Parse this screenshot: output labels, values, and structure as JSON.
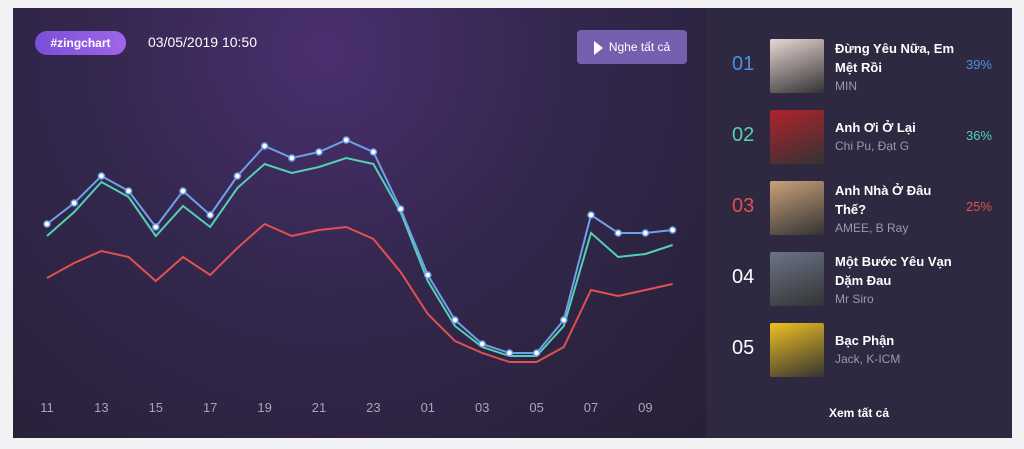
{
  "header": {
    "tag": "#zingchart",
    "timestamp": "03/05/2019 10:50",
    "play_button": "Nghe tất cả"
  },
  "chart_data": {
    "type": "line",
    "categories": [
      "11",
      null,
      "13",
      null,
      "15",
      null,
      "17",
      null,
      "19",
      null,
      "21",
      null,
      "23",
      null,
      "01",
      null,
      "03",
      null,
      "05",
      null,
      "07",
      null,
      "09",
      null
    ],
    "series": [
      {
        "color": "#6fa0ea",
        "markers": true,
        "values": [
          52,
          59,
          68,
          63,
          51,
          63,
          55,
          68,
          78,
          74,
          76,
          80,
          76,
          57,
          35,
          20,
          12,
          9,
          9,
          20,
          55,
          49,
          49,
          50
        ]
      },
      {
        "color": "#52d2b2",
        "markers": false,
        "values": [
          48,
          56,
          66,
          61,
          48,
          58,
          51,
          64,
          72,
          69,
          71,
          74,
          72,
          56,
          33,
          18,
          11,
          8,
          8,
          18,
          49,
          41,
          42,
          45
        ]
      },
      {
        "color": "#e0514f",
        "markers": false,
        "values": [
          34,
          39,
          43,
          41,
          33,
          41,
          35,
          44,
          52,
          48,
          50,
          51,
          47,
          36,
          22,
          13,
          9,
          6,
          6,
          11,
          30,
          28,
          30,
          32
        ]
      }
    ],
    "ylim": [
      0,
      100
    ],
    "grid": false
  },
  "ranking": {
    "items": [
      {
        "rank": "01",
        "title": "Đừng Yêu Nữa, Em Mệt Rồi",
        "artist": "MIN",
        "percent": "39%",
        "color": "#4a8fe2"
      },
      {
        "rank": "02",
        "title": "Anh Ơi Ở Lại",
        "artist": "Chi Pu,  Đạt G",
        "percent": "36%",
        "color": "#52d2b2"
      },
      {
        "rank": "03",
        "title": "Anh Nhà Ở Đâu Thế?",
        "artist": "AMEE,  B Ray",
        "percent": "25%",
        "color": "#e0514f"
      },
      {
        "rank": "04",
        "title": "Một Bước Yêu Vạn Dặm Đau",
        "artist": "Mr Siro",
        "color": "#ffffff"
      },
      {
        "rank": "05",
        "title": "Bạc Phận",
        "artist": "Jack,  K-ICM",
        "color": "#ffffff"
      }
    ],
    "more": "Xem tất cả"
  }
}
